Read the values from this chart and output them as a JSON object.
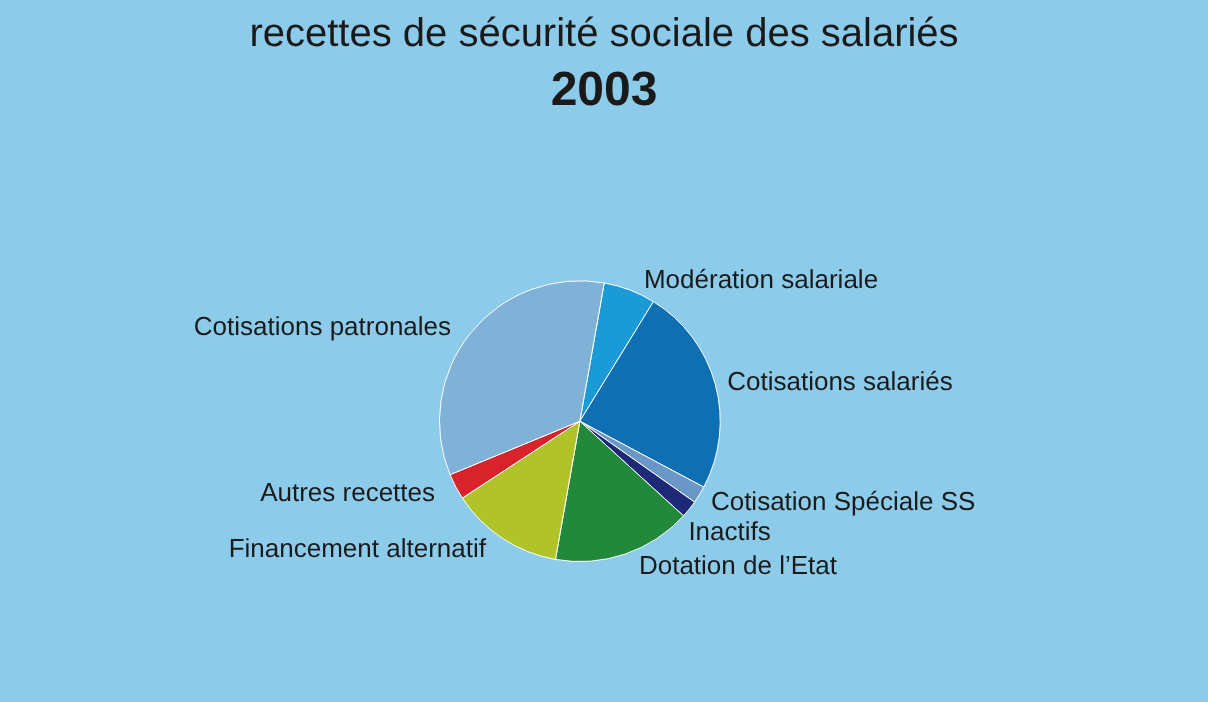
{
  "chart_data": {
    "type": "pie",
    "title": "recettes de sécurité sociale des salariés",
    "subtitle": "2003",
    "categories": [
      "Modération salariale",
      "Cotisations salariés",
      "Cotisation Spéciale SS",
      "Inactifs",
      "Dotation de l’Etat",
      "Financement alternatif",
      "Autres recettes",
      "Cotisations patronales"
    ],
    "values": [
      6,
      24,
      2,
      2,
      16,
      13,
      3,
      34
    ],
    "colors": [
      "#1a9ad6",
      "#0f6fb3",
      "#6b97c7",
      "#1e2a78",
      "#23893a",
      "#b0c42a",
      "#d8232a",
      "#7fb2d6"
    ],
    "legend": false
  }
}
